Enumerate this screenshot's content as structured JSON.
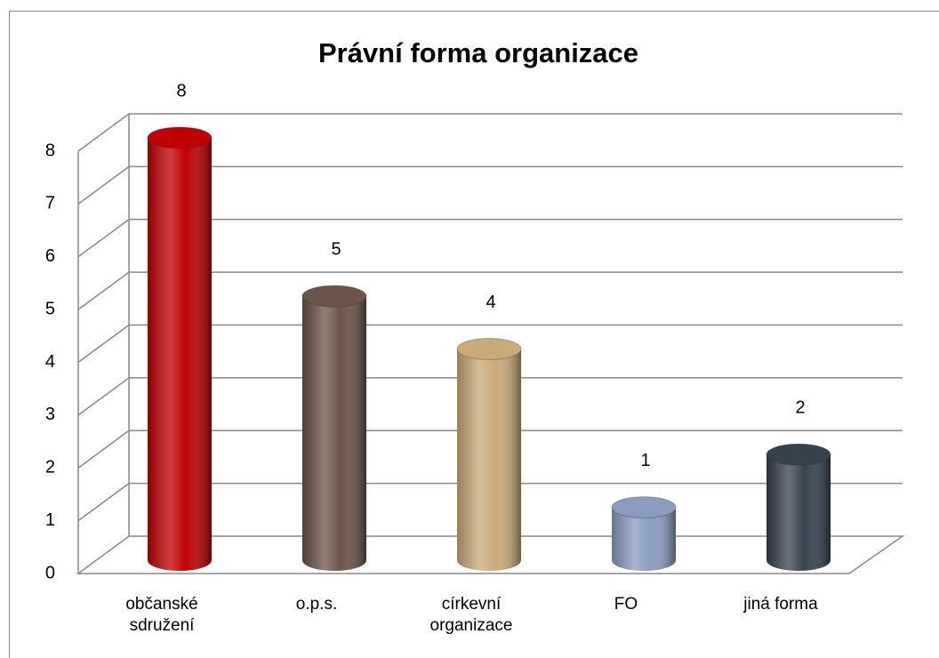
{
  "chart_data": {
    "type": "bar3d",
    "title": "Právní forma organizace",
    "categories": [
      "občanské sdružení",
      "o.p.s.",
      "církevní organizace",
      "FO",
      "jiná forma"
    ],
    "values": [
      8,
      5,
      4,
      1,
      2
    ],
    "colors": [
      "#c00000",
      "#6b5548",
      "#c9aa78",
      "#8a9cc0",
      "#37424f"
    ],
    "ylim": [
      0,
      8
    ],
    "yticks": [
      0,
      1,
      2,
      3,
      4,
      5,
      6,
      7,
      8
    ],
    "grid": true
  }
}
